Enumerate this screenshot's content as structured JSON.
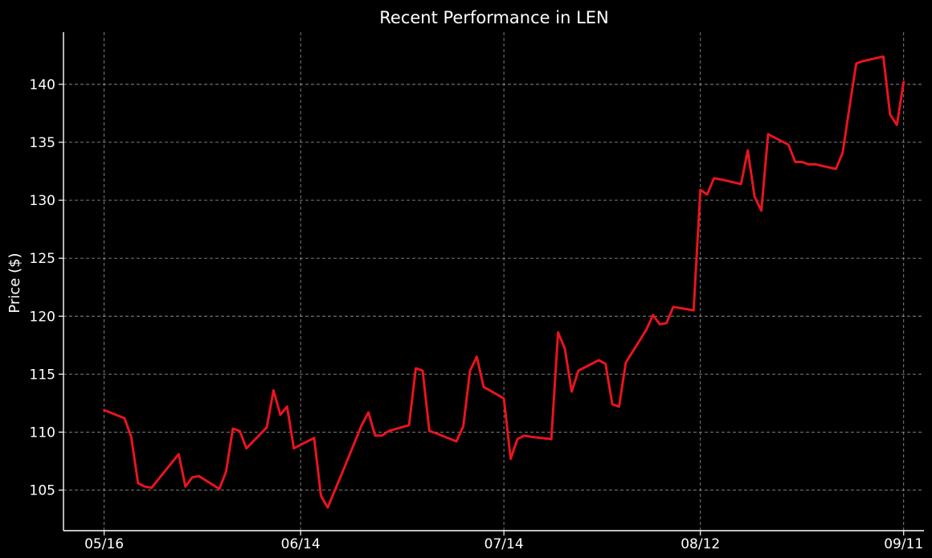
{
  "chart_data": {
    "type": "line",
    "title": "Recent Performance in LEN",
    "xlabel": "",
    "ylabel": "Price ($)",
    "ylim": [
      101.5,
      144.5
    ],
    "yticks": [
      105,
      110,
      115,
      120,
      125,
      130,
      135,
      140
    ],
    "x_tick_labels": [
      "05/16",
      "06/14",
      "07/14",
      "08/12",
      "09/11"
    ],
    "x_tick_dates": [
      "2024-05-16",
      "2024-06-14",
      "2024-07-14",
      "2024-08-12",
      "2024-09-11"
    ],
    "xlim": [
      "2024-05-10",
      "2024-09-14"
    ],
    "grid": true,
    "series_color": "#e8141e",
    "series": [
      {
        "x": [
          "2024-05-16",
          "2024-05-19",
          "2024-05-20",
          "2024-05-21",
          "2024-05-22",
          "2024-05-23",
          "2024-05-27",
          "2024-05-28",
          "2024-05-29",
          "2024-05-30",
          "2024-06-02",
          "2024-06-03",
          "2024-06-04",
          "2024-06-05",
          "2024-06-06",
          "2024-06-09",
          "2024-06-10",
          "2024-06-11",
          "2024-06-12",
          "2024-06-13",
          "2024-06-16",
          "2024-06-17",
          "2024-06-18",
          "2024-06-19",
          "2024-06-20",
          "2024-06-23",
          "2024-06-24",
          "2024-06-25",
          "2024-06-26",
          "2024-06-27",
          "2024-06-30",
          "2024-07-01",
          "2024-07-02",
          "2024-07-03",
          "2024-07-04",
          "2024-07-07",
          "2024-07-08",
          "2024-07-09",
          "2024-07-10",
          "2024-07-11",
          "2024-07-14",
          "2024-07-15",
          "2024-07-16",
          "2024-07-17",
          "2024-07-18",
          "2024-07-21",
          "2024-07-22",
          "2024-07-23",
          "2024-07-24",
          "2024-07-25",
          "2024-07-28",
          "2024-07-29",
          "2024-07-30",
          "2024-07-31",
          "2024-08-01",
          "2024-08-04",
          "2024-08-05",
          "2024-08-06",
          "2024-08-07",
          "2024-08-08",
          "2024-08-11",
          "2024-08-12",
          "2024-08-13",
          "2024-08-14",
          "2024-08-15",
          "2024-08-18",
          "2024-08-19",
          "2024-08-20",
          "2024-08-21",
          "2024-08-22",
          "2024-08-25",
          "2024-08-26",
          "2024-08-27",
          "2024-08-28",
          "2024-08-29",
          "2024-09-01",
          "2024-09-02",
          "2024-09-03",
          "2024-09-04",
          "2024-09-05",
          "2024-09-08",
          "2024-09-09",
          "2024-09-10",
          "2024-09-11"
        ],
        "y": [
          111.9,
          111.2,
          109.6,
          105.6,
          105.3,
          105.2,
          108.1,
          105.3,
          106.1,
          106.2,
          105.1,
          106.6,
          110.3,
          110.1,
          108.6,
          110.4,
          113.6,
          111.5,
          112.2,
          108.6,
          109.5,
          104.5,
          103.5,
          104.9,
          106.3,
          110.6,
          111.7,
          109.7,
          109.7,
          110.1,
          110.6,
          115.5,
          115.3,
          110.1,
          109.9,
          109.2,
          110.5,
          115.3,
          116.5,
          113.9,
          112.9,
          107.7,
          109.4,
          109.7,
          109.6,
          109.4,
          118.6,
          117.2,
          113.5,
          115.3,
          116.2,
          115.9,
          112.4,
          112.2,
          116.0,
          118.8,
          120.1,
          119.3,
          119.4,
          120.8,
          120.5,
          130.9,
          130.5,
          131.9,
          131.8,
          131.4,
          134.3,
          130.3,
          129.1,
          135.7,
          134.8,
          133.3,
          133.3,
          133.1,
          133.1,
          132.7,
          134.1,
          138.0,
          141.8,
          142.0,
          142.4,
          137.4,
          136.5,
          140.2
        ]
      }
    ]
  }
}
